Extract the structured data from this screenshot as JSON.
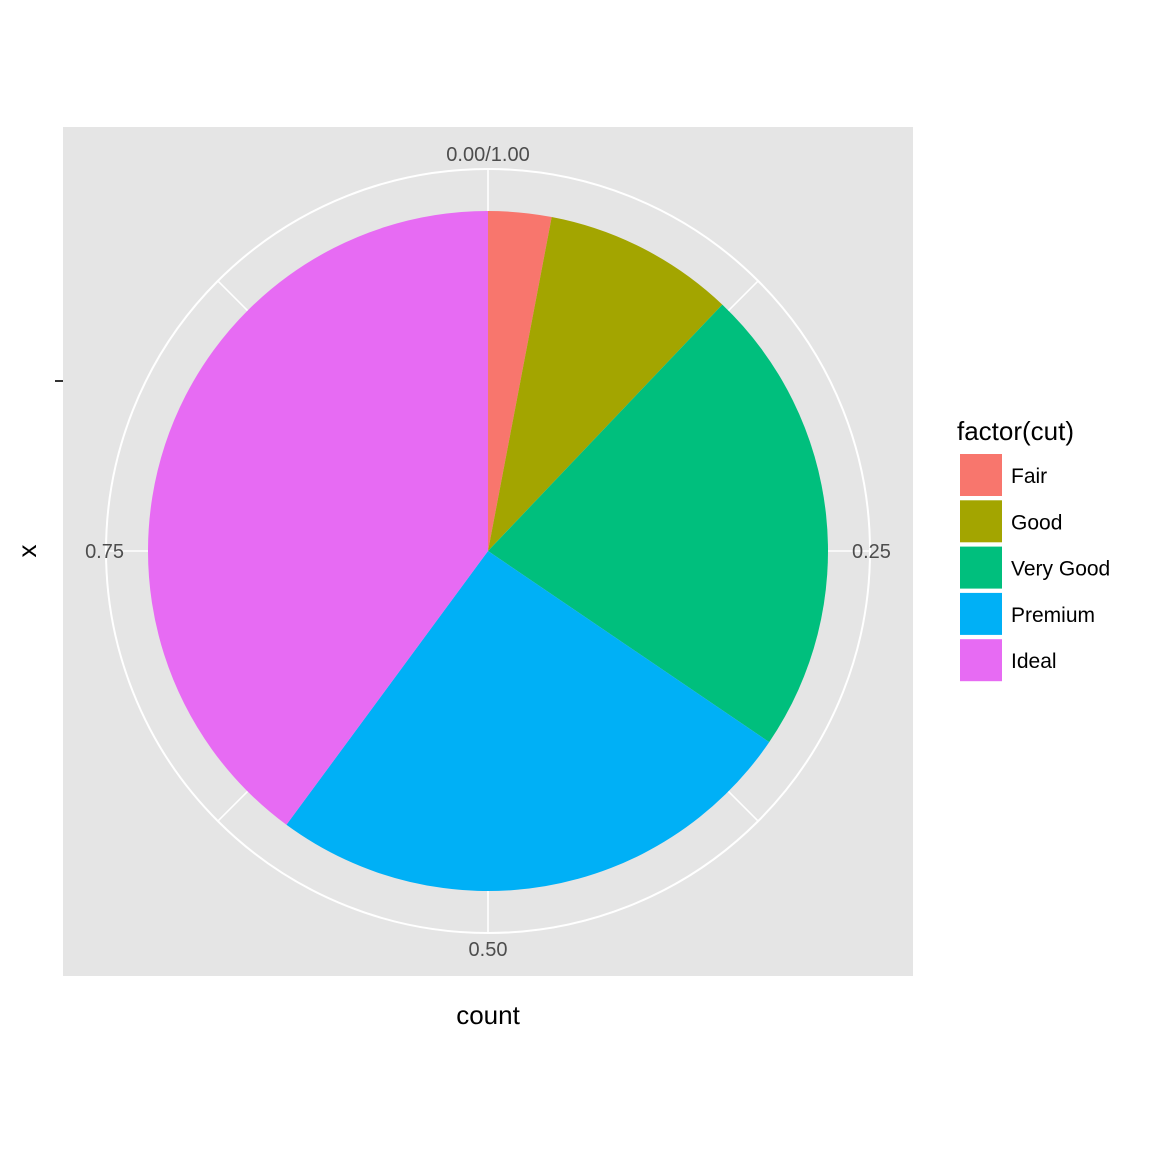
{
  "chart_data": {
    "type": "pie",
    "xlabel": "x",
    "ylabel": "count",
    "y_tick_label": "",
    "theta_ticks": [
      {
        "value": 0.0,
        "label": "0.00/1.00"
      },
      {
        "value": 0.25,
        "label": "0.25"
      },
      {
        "value": 0.5,
        "label": "0.50"
      },
      {
        "value": 0.75,
        "label": "0.75"
      }
    ],
    "legend": {
      "title": "factor(cut)",
      "placement": "right"
    },
    "slices": [
      {
        "label": "Fair",
        "value": 0.03,
        "color": "#F8766D"
      },
      {
        "label": "Good",
        "value": 0.091,
        "color": "#A3A500"
      },
      {
        "label": "Very Good",
        "value": 0.224,
        "color": "#00BF7D"
      },
      {
        "label": "Premium",
        "value": 0.256,
        "color": "#00B0F6"
      },
      {
        "label": "Ideal",
        "value": 0.399,
        "color": "#E76BF3"
      }
    ],
    "panel_background": "#e5e5e5",
    "grid_color": "#ffffff"
  }
}
